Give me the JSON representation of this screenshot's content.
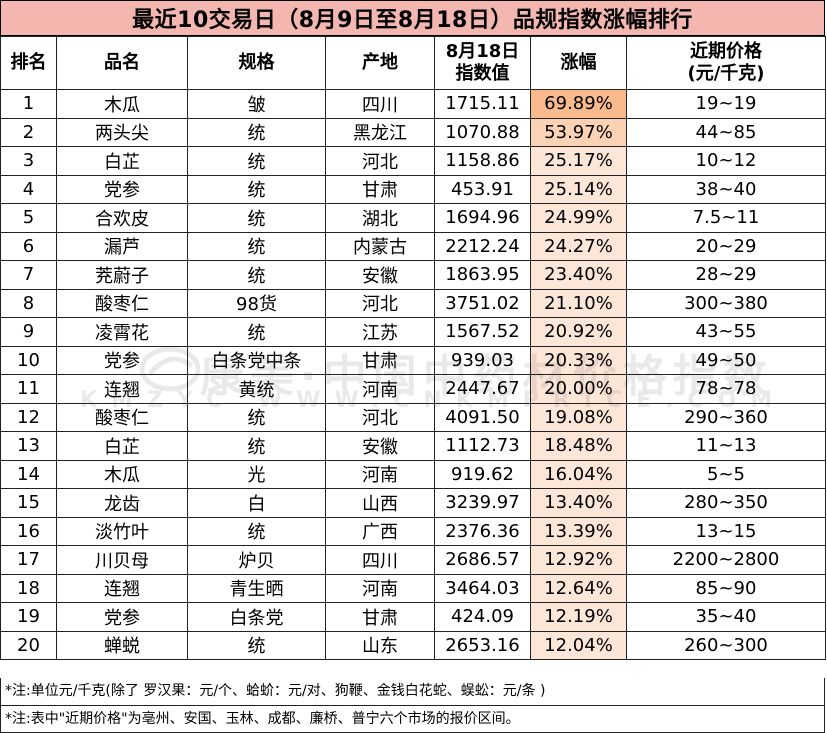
{
  "title": "最近10交易日（8月9日至8月18日）品规指数涨幅排行",
  "headers": {
    "rank": "排名",
    "name": "品名",
    "spec": "规格",
    "origin": "产地",
    "index_line1": "8月18日",
    "index_line2": "指数值",
    "change": "涨幅",
    "price_line1": "近期价格",
    "price_line2": "(元/千克)"
  },
  "rows": [
    {
      "rank": "1",
      "name": "木瓜",
      "spec": "皱",
      "origin": "四川",
      "index": "1715.11",
      "change": "69.89%",
      "price": "19~19"
    },
    {
      "rank": "2",
      "name": "两头尖",
      "spec": "统",
      "origin": "黑龙江",
      "index": "1070.88",
      "change": "53.97%",
      "price": "44~85"
    },
    {
      "rank": "3",
      "name": "白芷",
      "spec": "统",
      "origin": "河北",
      "index": "1158.86",
      "change": "25.17%",
      "price": "10~12"
    },
    {
      "rank": "4",
      "name": "党参",
      "spec": "统",
      "origin": "甘肃",
      "index": "453.91",
      "change": "25.14%",
      "price": "38~40"
    },
    {
      "rank": "5",
      "name": "合欢皮",
      "spec": "统",
      "origin": "湖北",
      "index": "1694.96",
      "change": "24.99%",
      "price": "7.5~11"
    },
    {
      "rank": "6",
      "name": "漏芦",
      "spec": "统",
      "origin": "内蒙古",
      "index": "2212.24",
      "change": "24.27%",
      "price": "20~29"
    },
    {
      "rank": "7",
      "name": "茺蔚子",
      "spec": "统",
      "origin": "安徽",
      "index": "1863.95",
      "change": "23.40%",
      "price": "28~29"
    },
    {
      "rank": "8",
      "name": "酸枣仁",
      "spec": "98货",
      "origin": "河北",
      "index": "3751.02",
      "change": "21.10%",
      "price": "300~380"
    },
    {
      "rank": "9",
      "name": "凌霄花",
      "spec": "统",
      "origin": "江苏",
      "index": "1567.52",
      "change": "20.92%",
      "price": "43~55"
    },
    {
      "rank": "10",
      "name": "党参",
      "spec": "白条党中条",
      "origin": "甘肃",
      "index": "939.03",
      "change": "20.33%",
      "price": "49~50"
    },
    {
      "rank": "11",
      "name": "连翘",
      "spec": "黄统",
      "origin": "河南",
      "index": "2447.67",
      "change": "20.00%",
      "price": "78~78"
    },
    {
      "rank": "12",
      "name": "酸枣仁",
      "spec": "统",
      "origin": "河北",
      "index": "4091.50",
      "change": "19.08%",
      "price": "290~360"
    },
    {
      "rank": "13",
      "name": "白芷",
      "spec": "统",
      "origin": "安徽",
      "index": "1112.73",
      "change": "18.48%",
      "price": "11~13"
    },
    {
      "rank": "14",
      "name": "木瓜",
      "spec": "光",
      "origin": "河南",
      "index": "919.62",
      "change": "16.04%",
      "price": "5~5"
    },
    {
      "rank": "15",
      "name": "龙齿",
      "spec": "白",
      "origin": "山西",
      "index": "3239.97",
      "change": "13.40%",
      "price": "280~350"
    },
    {
      "rank": "16",
      "name": "淡竹叶",
      "spec": "统",
      "origin": "广西",
      "index": "2376.36",
      "change": "13.39%",
      "price": "13~15"
    },
    {
      "rank": "17",
      "name": "川贝母",
      "spec": "炉贝",
      "origin": "四川",
      "index": "2686.57",
      "change": "12.92%",
      "price": "2200~2800"
    },
    {
      "rank": "18",
      "name": "连翘",
      "spec": "青生晒",
      "origin": "河南",
      "index": "3464.03",
      "change": "12.64%",
      "price": "85~90"
    },
    {
      "rank": "19",
      "name": "党参",
      "spec": "白条党",
      "origin": "甘肃",
      "index": "424.09",
      "change": "12.19%",
      "price": "35~40"
    },
    {
      "rank": "20",
      "name": "蝉蜕",
      "spec": "统",
      "origin": "山东",
      "index": "2653.16",
      "change": "12.04%",
      "price": "260~300"
    }
  ],
  "notes": [
    "*注:单位元/千克(除了 罗汉果：元/个、蛤蚧：元/对、狗鞭、金钱白花蛇、蜈蚣：元/条 )",
    "*注:表中\"近期价格\"为亳州、安国、玉林、成都、廉桥、普宁六个市场的报价区间。"
  ],
  "watermark": {
    "line1": "康美·中国中药材价格指数",
    "line2": "KMZYC WWW.CNKMPRICE.COM"
  },
  "colors": {
    "title_bg": "#f4b7b0",
    "change_col_bg": "#fce6d8",
    "change_top1_bg": "#f9bb8e",
    "change_top2_bg": "#fbd2b3"
  }
}
